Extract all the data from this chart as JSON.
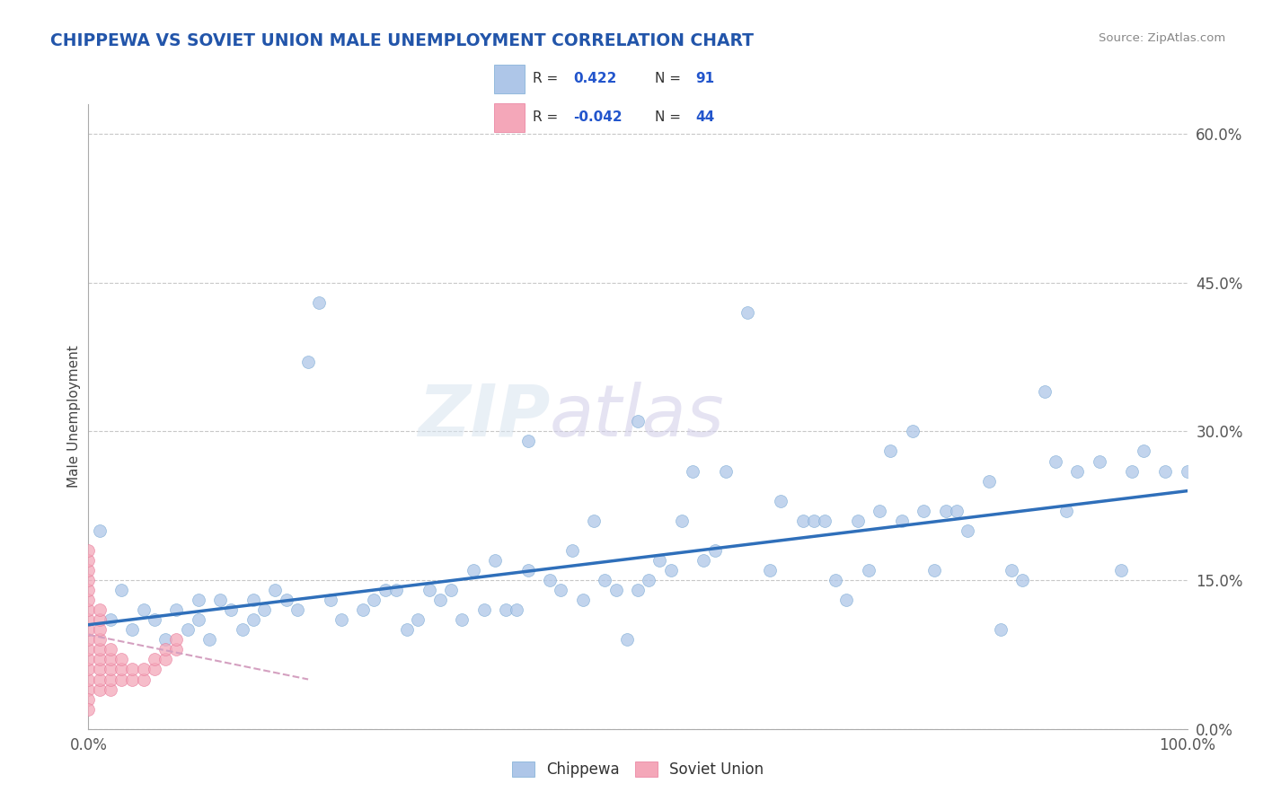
{
  "title": "CHIPPEWA VS SOVIET UNION MALE UNEMPLOYMENT CORRELATION CHART",
  "source": "Source: ZipAtlas.com",
  "ylabel": "Male Unemployment",
  "yticks_pct": [
    "0.0%",
    "15.0%",
    "30.0%",
    "45.0%",
    "60.0%"
  ],
  "ytick_vals": [
    0,
    15,
    30,
    45,
    60
  ],
  "xlim": [
    0,
    100
  ],
  "ylim": [
    0,
    63
  ],
  "watermark_zip": "ZIP",
  "watermark_atlas": "atlas",
  "chippewa_color": "#aec6e8",
  "soviet_color": "#f4a7b9",
  "chippewa_edge": "#7aaad4",
  "soviet_edge": "#e87a9a",
  "chippewa_line_color": "#2f6fba",
  "soviet_line_color": "#d4a0c0",
  "chippewa_points": [
    [
      1,
      20
    ],
    [
      2,
      11
    ],
    [
      3,
      14
    ],
    [
      4,
      10
    ],
    [
      5,
      12
    ],
    [
      6,
      11
    ],
    [
      7,
      9
    ],
    [
      8,
      12
    ],
    [
      9,
      10
    ],
    [
      10,
      13
    ],
    [
      10,
      11
    ],
    [
      11,
      9
    ],
    [
      12,
      13
    ],
    [
      13,
      12
    ],
    [
      14,
      10
    ],
    [
      15,
      11
    ],
    [
      15,
      13
    ],
    [
      16,
      12
    ],
    [
      17,
      14
    ],
    [
      18,
      13
    ],
    [
      19,
      12
    ],
    [
      20,
      37
    ],
    [
      21,
      43
    ],
    [
      22,
      13
    ],
    [
      23,
      11
    ],
    [
      25,
      12
    ],
    [
      26,
      13
    ],
    [
      27,
      14
    ],
    [
      28,
      14
    ],
    [
      29,
      10
    ],
    [
      30,
      11
    ],
    [
      31,
      14
    ],
    [
      32,
      13
    ],
    [
      33,
      14
    ],
    [
      34,
      11
    ],
    [
      35,
      16
    ],
    [
      36,
      12
    ],
    [
      37,
      17
    ],
    [
      38,
      12
    ],
    [
      39,
      12
    ],
    [
      40,
      16
    ],
    [
      40,
      29
    ],
    [
      42,
      15
    ],
    [
      43,
      14
    ],
    [
      44,
      18
    ],
    [
      45,
      13
    ],
    [
      46,
      21
    ],
    [
      47,
      15
    ],
    [
      48,
      14
    ],
    [
      49,
      9
    ],
    [
      50,
      14
    ],
    [
      50,
      31
    ],
    [
      51,
      15
    ],
    [
      52,
      17
    ],
    [
      53,
      16
    ],
    [
      54,
      21
    ],
    [
      55,
      26
    ],
    [
      56,
      17
    ],
    [
      57,
      18
    ],
    [
      58,
      26
    ],
    [
      60,
      42
    ],
    [
      62,
      16
    ],
    [
      63,
      23
    ],
    [
      65,
      21
    ],
    [
      66,
      21
    ],
    [
      67,
      21
    ],
    [
      68,
      15
    ],
    [
      69,
      13
    ],
    [
      70,
      21
    ],
    [
      71,
      16
    ],
    [
      72,
      22
    ],
    [
      73,
      28
    ],
    [
      74,
      21
    ],
    [
      75,
      30
    ],
    [
      76,
      22
    ],
    [
      77,
      16
    ],
    [
      78,
      22
    ],
    [
      79,
      22
    ],
    [
      80,
      20
    ],
    [
      82,
      25
    ],
    [
      83,
      10
    ],
    [
      84,
      16
    ],
    [
      85,
      15
    ],
    [
      87,
      34
    ],
    [
      88,
      27
    ],
    [
      89,
      22
    ],
    [
      90,
      26
    ],
    [
      92,
      27
    ],
    [
      94,
      16
    ],
    [
      95,
      26
    ],
    [
      96,
      28
    ],
    [
      98,
      26
    ],
    [
      100,
      26
    ]
  ],
  "soviet_points": [
    [
      0,
      4
    ],
    [
      0,
      5
    ],
    [
      0,
      6
    ],
    [
      0,
      7
    ],
    [
      0,
      8
    ],
    [
      0,
      9
    ],
    [
      0,
      10
    ],
    [
      0,
      11
    ],
    [
      0,
      12
    ],
    [
      0,
      13
    ],
    [
      0,
      14
    ],
    [
      0,
      15
    ],
    [
      0,
      16
    ],
    [
      0,
      3
    ],
    [
      0,
      2
    ],
    [
      0,
      17
    ],
    [
      0,
      18
    ],
    [
      1,
      4
    ],
    [
      1,
      5
    ],
    [
      1,
      6
    ],
    [
      1,
      7
    ],
    [
      1,
      8
    ],
    [
      1,
      9
    ],
    [
      1,
      10
    ],
    [
      1,
      11
    ],
    [
      1,
      12
    ],
    [
      2,
      4
    ],
    [
      2,
      5
    ],
    [
      2,
      6
    ],
    [
      2,
      7
    ],
    [
      2,
      8
    ],
    [
      3,
      5
    ],
    [
      3,
      6
    ],
    [
      3,
      7
    ],
    [
      4,
      5
    ],
    [
      4,
      6
    ],
    [
      5,
      5
    ],
    [
      5,
      6
    ],
    [
      6,
      6
    ],
    [
      6,
      7
    ],
    [
      7,
      7
    ],
    [
      7,
      8
    ],
    [
      8,
      8
    ],
    [
      8,
      9
    ]
  ],
  "chippewa_trend_x": [
    0,
    100
  ],
  "chippewa_trend_y": [
    10.5,
    24.0
  ],
  "soviet_trend_x": [
    0,
    15
  ],
  "soviet_trend_y": [
    9.0,
    6.5
  ]
}
